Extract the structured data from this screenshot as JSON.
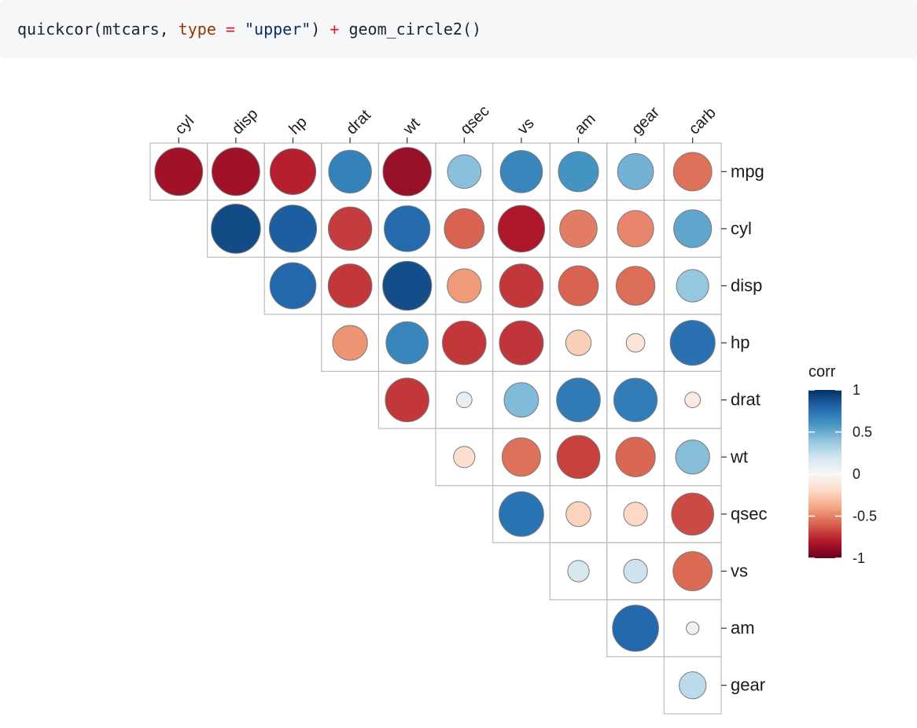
{
  "code": {
    "fn": "quickcor(mtcars, ",
    "arg": "type",
    "eq": " = ",
    "str": "\"upper\"",
    "mid": ") ",
    "plus": "+",
    "rest": " geom_circle2()"
  },
  "chart_data": {
    "type": "heatmap",
    "variables": [
      "mpg",
      "cyl",
      "disp",
      "hp",
      "drat",
      "wt",
      "qsec",
      "vs",
      "am",
      "gear",
      "carb"
    ],
    "x_labels": [
      "cyl",
      "disp",
      "hp",
      "drat",
      "wt",
      "qsec",
      "vs",
      "am",
      "gear",
      "carb"
    ],
    "y_labels": [
      "mpg",
      "cyl",
      "disp",
      "hp",
      "drat",
      "wt",
      "qsec",
      "vs",
      "am",
      "gear"
    ],
    "matrix_layout": "upper",
    "values": [
      [
        -0.85,
        -0.85,
        -0.78,
        0.68,
        -0.87,
        0.42,
        0.66,
        0.6,
        0.48,
        -0.55
      ],
      [
        null,
        0.9,
        0.83,
        -0.7,
        0.78,
        -0.59,
        -0.81,
        -0.52,
        -0.49,
        0.53
      ],
      [
        null,
        null,
        0.79,
        -0.71,
        0.89,
        -0.43,
        -0.71,
        -0.59,
        -0.56,
        0.39
      ],
      [
        null,
        null,
        null,
        -0.45,
        0.66,
        -0.71,
        -0.72,
        -0.24,
        -0.13,
        0.75
      ],
      [
        null,
        null,
        null,
        null,
        -0.71,
        0.09,
        0.44,
        0.71,
        0.7,
        -0.09
      ],
      [
        null,
        null,
        null,
        null,
        null,
        -0.17,
        -0.55,
        -0.69,
        -0.58,
        0.43
      ],
      [
        null,
        null,
        null,
        null,
        null,
        null,
        0.74,
        -0.23,
        -0.21,
        -0.66
      ],
      [
        null,
        null,
        null,
        null,
        null,
        null,
        null,
        0.17,
        0.21,
        -0.57
      ],
      [
        null,
        null,
        null,
        null,
        null,
        null,
        null,
        null,
        0.79,
        0.06
      ],
      [
        null,
        null,
        null,
        null,
        null,
        null,
        null,
        null,
        null,
        0.27
      ]
    ],
    "legend": {
      "title": "corr",
      "ticks": [
        1,
        0.5,
        0,
        -0.5,
        -1
      ],
      "tick_labels": [
        "1",
        "0.5",
        "0",
        "-0.5",
        "-1"
      ],
      "placement": "right"
    },
    "colors": {
      "high": "#053061",
      "mid": "#f7f7f7",
      "low": "#67001f",
      "circle_stroke": "#7a7a7a",
      "grid": "#bdbdbd"
    }
  }
}
